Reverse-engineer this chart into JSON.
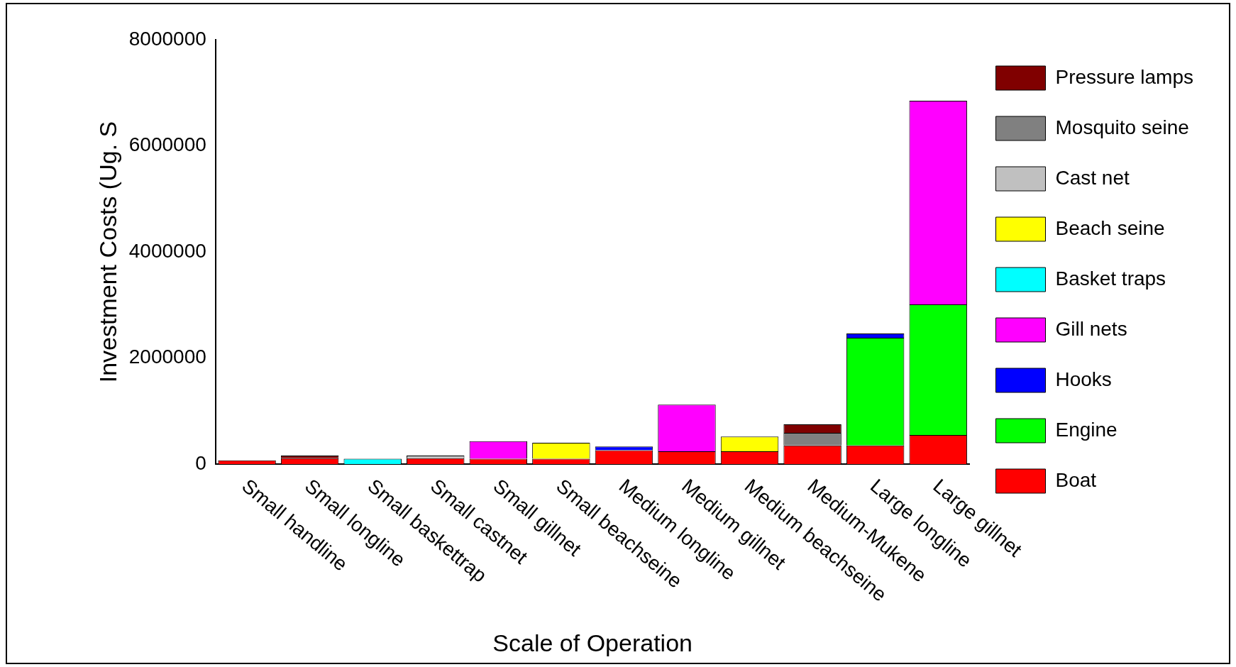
{
  "chart_data": {
    "type": "bar",
    "stacked": true,
    "xlabel": "Scale of Operation",
    "ylabel": "Investment Costs (Ug. S",
    "categories": [
      "Small handline",
      "Small longline",
      "Small baskettrap",
      "Small castnet",
      "Small gillnet",
      "Small beachseine",
      "Medium longline",
      "Medium gillnet",
      "Medium beachseine",
      "Medium-Mukene",
      "Large longline",
      "Large gillnet"
    ],
    "series": [
      {
        "name": "Boat",
        "color": "#ff0000",
        "values": [
          70000,
          110000,
          null,
          110000,
          100000,
          100000,
          260000,
          240000,
          240000,
          350000,
          350000,
          550000
        ]
      },
      {
        "name": "Engine",
        "color": "#00ff00",
        "values": [
          null,
          null,
          null,
          null,
          null,
          null,
          null,
          null,
          null,
          null,
          2030000,
          2460000
        ]
      },
      {
        "name": "Hooks",
        "color": "#0000ff",
        "values": [
          null,
          null,
          null,
          null,
          null,
          null,
          70000,
          null,
          null,
          null,
          80000,
          null
        ]
      },
      {
        "name": "Gill nets",
        "color": "#ff00ff",
        "values": [
          null,
          null,
          null,
          null,
          330000,
          null,
          null,
          880000,
          null,
          null,
          null,
          3840000
        ]
      },
      {
        "name": "Basket traps",
        "color": "#00ffff",
        "values": [
          null,
          null,
          100000,
          null,
          null,
          null,
          null,
          null,
          null,
          null,
          null,
          null
        ]
      },
      {
        "name": "Beach seine",
        "color": "#ffff00",
        "values": [
          null,
          null,
          null,
          null,
          null,
          300000,
          null,
          null,
          280000,
          null,
          null,
          null
        ]
      },
      {
        "name": "Cast net",
        "color": "#c0c0c0",
        "values": [
          null,
          null,
          null,
          50000,
          null,
          null,
          null,
          null,
          null,
          null,
          null,
          null
        ]
      },
      {
        "name": "Mosquito seine",
        "color": "#808080",
        "values": [
          null,
          null,
          null,
          null,
          null,
          null,
          null,
          null,
          null,
          240000,
          null,
          null
        ]
      },
      {
        "name": "Pressure lamps",
        "color": "#800000",
        "values": [
          null,
          50000,
          null,
          null,
          null,
          null,
          null,
          null,
          null,
          160000,
          null,
          null
        ]
      }
    ],
    "ylim": [
      0,
      8000000
    ],
    "yticks": [
      0,
      2000000,
      4000000,
      6000000,
      8000000
    ],
    "grid": false,
    "legend": "right"
  }
}
